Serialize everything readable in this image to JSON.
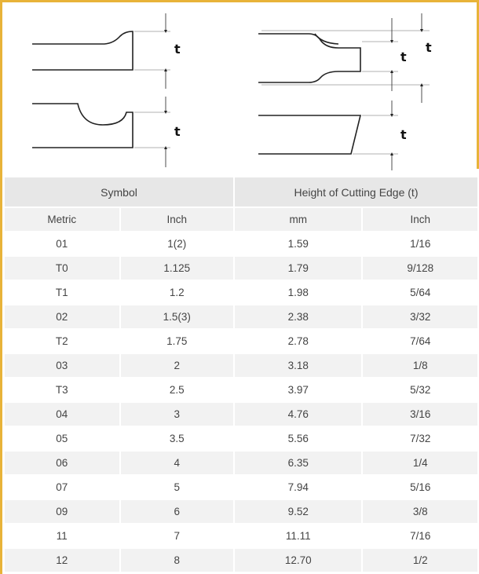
{
  "diagram": {
    "labels": {
      "t": "t"
    }
  },
  "table": {
    "group_headers": {
      "symbol": "Symbol",
      "height": "Height of Cutting Edge (t)"
    },
    "sub_headers": {
      "metric": "Metric",
      "inch": "Inch",
      "mm": "mm",
      "inch2": "Inch"
    },
    "rows": [
      {
        "metric": "01",
        "inch": "1(2)",
        "mm": "1.59",
        "inch_frac": "1/16"
      },
      {
        "metric": "T0",
        "inch": "1.125",
        "mm": "1.79",
        "inch_frac": "9/128"
      },
      {
        "metric": "T1",
        "inch": "1.2",
        "mm": "1.98",
        "inch_frac": "5/64"
      },
      {
        "metric": "02",
        "inch": "1.5(3)",
        "mm": "2.38",
        "inch_frac": "3/32"
      },
      {
        "metric": "T2",
        "inch": "1.75",
        "mm": "2.78",
        "inch_frac": "7/64"
      },
      {
        "metric": "03",
        "inch": "2",
        "mm": "3.18",
        "inch_frac": "1/8"
      },
      {
        "metric": "T3",
        "inch": "2.5",
        "mm": "3.97",
        "inch_frac": "5/32"
      },
      {
        "metric": "04",
        "inch": "3",
        "mm": "4.76",
        "inch_frac": "3/16"
      },
      {
        "metric": "05",
        "inch": "3.5",
        "mm": "5.56",
        "inch_frac": "7/32"
      },
      {
        "metric": "06",
        "inch": "4",
        "mm": "6.35",
        "inch_frac": "1/4"
      },
      {
        "metric": "07",
        "inch": "5",
        "mm": "7.94",
        "inch_frac": "5/16"
      },
      {
        "metric": "09",
        "inch": "6",
        "mm": "9.52",
        "inch_frac": "3/8"
      },
      {
        "metric": "11",
        "inch": "7",
        "mm": "11.11",
        "inch_frac": "7/16"
      },
      {
        "metric": "12",
        "inch": "8",
        "mm": "12.70",
        "inch_frac": "1/2"
      }
    ]
  },
  "colors": {
    "accent": "#e8b339",
    "header_bg": "#e7e7e7",
    "stripe_bg": "#f2f2f2"
  }
}
